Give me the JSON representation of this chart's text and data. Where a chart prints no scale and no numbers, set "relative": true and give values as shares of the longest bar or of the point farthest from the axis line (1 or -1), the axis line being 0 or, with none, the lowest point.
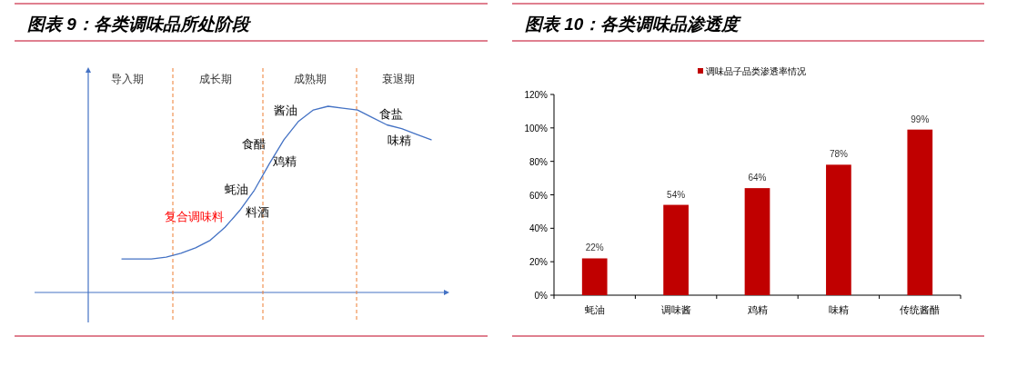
{
  "chart_data": [
    {
      "type": "line",
      "title": "图表 9：各类调味品所处阶段",
      "relative": true,
      "color": "#4472c4",
      "categories": [
        null,
        null,
        null,
        null,
        null,
        null,
        null,
        null,
        null,
        null,
        null,
        null,
        null,
        null,
        null,
        null,
        null,
        null,
        null,
        null,
        null,
        null
      ],
      "values": [
        0.18,
        0.18,
        0.18,
        0.19,
        0.21,
        0.24,
        0.28,
        0.35,
        0.44,
        0.55,
        0.69,
        0.82,
        0.92,
        0.98,
        1,
        0.99,
        0.98,
        0.94,
        0.9,
        0.88,
        0.85,
        0.82
      ],
      "ref_lines": [
        {
          "axis": "x",
          "color": "#ed7d31",
          "line_style": "dashed"
        },
        {
          "axis": "x",
          "color": "#ed7d31",
          "line_style": "dashed"
        },
        {
          "axis": "x",
          "color": "#ed7d31",
          "line_style": "dashed"
        }
      ],
      "annotations": [
        "导入期",
        "成长期",
        "成熟期",
        "衰退期",
        "酱油",
        "食盐",
        "味精",
        "食醋",
        "鸡精",
        "蚝油",
        "料酒",
        "复合调味料"
      ]
    },
    {
      "type": "bar",
      "title": "图表 10：各类调味品渗透度",
      "legend": "top",
      "categories": [
        "蚝油",
        "调味酱",
        "鸡精",
        "味精",
        "传统酱醋"
      ],
      "series": [
        {
          "name": "调味品子品类渗透率情况",
          "color": "#c00000",
          "values": [
            22,
            54,
            64,
            78,
            99
          ],
          "value_labels": [
            "22%",
            "54%",
            "64%",
            "78%",
            "99%"
          ]
        }
      ],
      "ylim": [
        0,
        120
      ],
      "yticks": [
        {
          "value": 0,
          "label": "0%"
        },
        {
          "value": 20,
          "label": "20%"
        },
        {
          "value": 40,
          "label": "40%"
        },
        {
          "value": 60,
          "label": "60%"
        },
        {
          "value": 80,
          "label": "80%"
        },
        {
          "value": 100,
          "label": "100%"
        },
        {
          "value": 120,
          "label": "120%"
        }
      ]
    }
  ]
}
